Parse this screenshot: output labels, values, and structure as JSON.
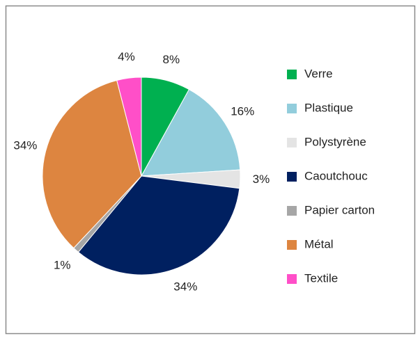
{
  "chart_data": {
    "type": "pie",
    "categories": [
      "Verre",
      "Plastique",
      "Polystyrène",
      "Caoutchouc",
      "Papier carton",
      "Métal",
      "Textile"
    ],
    "values": [
      8,
      16,
      3,
      34,
      1,
      34,
      4
    ],
    "value_labels": [
      "8%",
      "16%",
      "3%",
      "34%",
      "1%",
      "34%",
      "4%"
    ],
    "colors": [
      "#00b050",
      "#92cddc",
      "#e4e4e4",
      "#002060",
      "#a6a6a6",
      "#dd8540",
      "#ff4fc8"
    ],
    "legend": "right"
  }
}
